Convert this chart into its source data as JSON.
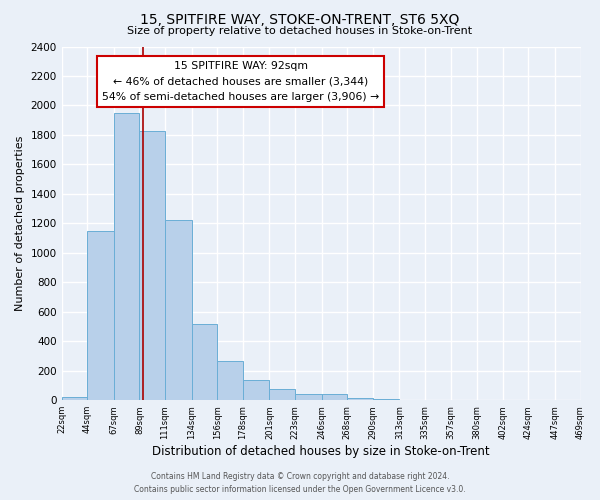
{
  "title": "15, SPITFIRE WAY, STOKE-ON-TRENT, ST6 5XQ",
  "subtitle": "Size of property relative to detached houses in Stoke-on-Trent",
  "xlabel": "Distribution of detached houses by size in Stoke-on-Trent",
  "ylabel": "Number of detached properties",
  "bin_edges": [
    22,
    44,
    67,
    89,
    111,
    134,
    156,
    178,
    201,
    223,
    246,
    268,
    290,
    313,
    335,
    357,
    380,
    402,
    424,
    447,
    469
  ],
  "bin_heights": [
    25,
    1150,
    1950,
    1830,
    1220,
    520,
    265,
    140,
    75,
    45,
    40,
    15,
    5,
    3,
    2,
    1,
    1,
    0,
    0,
    0
  ],
  "bar_color": "#b8d0ea",
  "bar_edge_color": "#6aaed6",
  "property_size": 92,
  "vline_color": "#aa0000",
  "annotation_title": "15 SPITFIRE WAY: 92sqm",
  "annotation_line1": "← 46% of detached houses are smaller (3,344)",
  "annotation_line2": "54% of semi-detached houses are larger (3,906) →",
  "annotation_box_color": "#ffffff",
  "annotation_border_color": "#cc0000",
  "ylim": [
    0,
    2400
  ],
  "yticks": [
    0,
    200,
    400,
    600,
    800,
    1000,
    1200,
    1400,
    1600,
    1800,
    2000,
    2200,
    2400
  ],
  "tick_labels": [
    "22sqm",
    "44sqm",
    "67sqm",
    "89sqm",
    "111sqm",
    "134sqm",
    "156sqm",
    "178sqm",
    "201sqm",
    "223sqm",
    "246sqm",
    "268sqm",
    "290sqm",
    "313sqm",
    "335sqm",
    "357sqm",
    "380sqm",
    "402sqm",
    "424sqm",
    "447sqm",
    "469sqm"
  ],
  "footer_line1": "Contains HM Land Registry data © Crown copyright and database right 2024.",
  "footer_line2": "Contains public sector information licensed under the Open Government Licence v3.0.",
  "bg_color": "#eaf0f8",
  "grid_color": "#ffffff"
}
